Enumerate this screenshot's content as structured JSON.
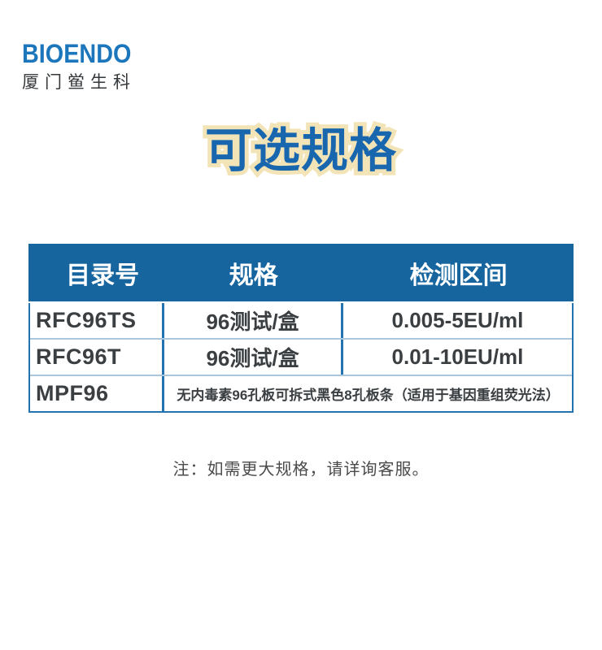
{
  "brand": {
    "logo_text": "BIOENDO",
    "logo_subtext": "厦门鲎生科"
  },
  "title": "可选规格",
  "table": {
    "headers": [
      "目录号",
      "规格",
      "检测区间"
    ],
    "rows": [
      {
        "catalog": "RFC96TS",
        "spec": "96测试/盒",
        "range": "0.005-5EU/ml"
      },
      {
        "catalog": "RFC96T",
        "spec": "96测试/盒",
        "range": "0.01-10EU/ml"
      },
      {
        "catalog": "MPF96",
        "description": "无内毒素96孔板可拆式黑色8孔板条（适用于基因重组荧光法）"
      }
    ]
  },
  "note": "注：如需更大规格，请详询客服。",
  "colors": {
    "logo_blue": "#1b76bc",
    "logo_subtext_color": "#34383b",
    "title_blue": "#1866ae",
    "title_outline_cream": "#f3e4b8",
    "header_bg": "#16659f",
    "header_text": "#ffffff",
    "table_border_blue": "#2273b0",
    "row_divider_light_blue": "#a9c6dd",
    "cell_text": "#3b3f42",
    "note_text": "#4a4a4a"
  }
}
